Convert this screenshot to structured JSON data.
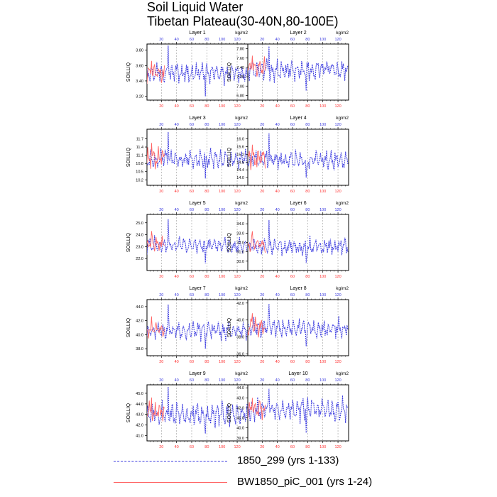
{
  "figure": {
    "title_line1": "Soil Liquid Water",
    "title_line2": "Tibetan Plateau(30-40N,80-100E)"
  },
  "legend": [
    {
      "label": "1850_299 (yrs 1-133)",
      "color": "#3a3adf",
      "style": "dashed"
    },
    {
      "label": "BW1850_piC_001 (yrs 1-24)",
      "color": "#ff6666",
      "style": "solid"
    }
  ],
  "chart_data": [
    {
      "type": "line",
      "title": "Layer 1",
      "units": "kg/m2",
      "ylabel": "SOILLIQ",
      "ylim": [
        3.15,
        3.88
      ],
      "yticks": [
        "3.20",
        "3.40",
        "3.60",
        "3.80"
      ],
      "yvals": [
        3.2,
        3.4,
        3.6,
        3.8
      ],
      "top_ticks": [
        "20",
        "40",
        "60",
        "80",
        "100",
        "120"
      ],
      "bottom_ticks": [
        "20",
        "40",
        "60",
        "80",
        "100",
        "120"
      ],
      "grid": "dashed vertical lines at top-axis ticks",
      "series": [
        {
          "name": "1850_299 (yrs 1-133)",
          "x_range": [
            1,
            133
          ],
          "color": "#3a3adf",
          "mean": 3.5,
          "amp": 0.09,
          "peak": 3.86,
          "min": 3.2
        },
        {
          "name": "BW1850_piC_001 (yrs 1-24)",
          "x_range": [
            1,
            24
          ],
          "color": "#ff6666",
          "mean": 3.5,
          "amp": 0.09,
          "peak": 3.66
        }
      ]
    },
    {
      "type": "line",
      "title": "Layer 2",
      "units": "kg/m2",
      "ylabel": "SOILLIQ",
      "ylim": [
        6.7,
        7.9
      ],
      "yticks": [
        "6.80",
        "7.00",
        "7.20",
        "7.40",
        "7.60",
        "7.80"
      ],
      "yvals": [
        6.8,
        7.0,
        7.2,
        7.4,
        7.6,
        7.8
      ],
      "top_ticks": [
        "20",
        "40",
        "60",
        "80",
        "100",
        "120"
      ],
      "bottom_ticks": [
        "20",
        "40",
        "60",
        "80",
        "100",
        "120"
      ],
      "grid": "dashed vertical lines at top-axis ticks",
      "series": [
        {
          "name": "1850_299 (yrs 1-133)",
          "x_range": [
            1,
            133
          ],
          "color": "#3a3adf",
          "mean": 7.35,
          "amp": 0.16,
          "peak": 7.85,
          "min": 6.9
        },
        {
          "name": "BW1850_piC_001 (yrs 1-24)",
          "x_range": [
            1,
            24
          ],
          "color": "#ff6666",
          "mean": 7.4,
          "amp": 0.15,
          "peak": 7.65
        }
      ]
    },
    {
      "type": "line",
      "title": "Layer 3",
      "units": "kg/m2",
      "ylabel": "SOILLIQ",
      "ylim": [
        10.0,
        12.05
      ],
      "yticks": [
        "10.2",
        "10.5",
        "10.8",
        "11.1",
        "11.4",
        "11.7"
      ],
      "yvals": [
        10.2,
        10.5,
        10.8,
        11.1,
        11.4,
        11.7
      ],
      "top_ticks": [
        "20",
        "40",
        "60",
        "80",
        "100",
        "120"
      ],
      "bottom_ticks": [
        "20",
        "40",
        "60",
        "80",
        "100",
        "120"
      ],
      "grid": "dashed vertical lines at top-axis ticks",
      "series": [
        {
          "name": "1850_299 (yrs 1-133)",
          "x_range": [
            1,
            133
          ],
          "color": "#3a3adf",
          "mean": 10.95,
          "amp": 0.25,
          "peak": 11.95,
          "min": 10.25
        },
        {
          "name": "BW1850_piC_001 (yrs 1-24)",
          "x_range": [
            1,
            24
          ],
          "color": "#ff6666",
          "mean": 11.0,
          "amp": 0.25,
          "peak": 11.55
        }
      ]
    },
    {
      "type": "line",
      "title": "Layer 4",
      "units": "kg/m2",
      "ylabel": "SOILLIQ",
      "ylim": [
        13.6,
        16.5
      ],
      "yticks": [
        "14.0",
        "14.4",
        "14.8",
        "15.2",
        "15.6",
        "16.0"
      ],
      "yvals": [
        14.0,
        14.4,
        14.8,
        15.2,
        15.6,
        16.0
      ],
      "top_ticks": [
        "20",
        "40",
        "60",
        "80",
        "100",
        "120"
      ],
      "bottom_ticks": [
        "20",
        "40",
        "60",
        "80",
        "100",
        "120"
      ],
      "grid": "dashed vertical lines at top-axis ticks",
      "series": [
        {
          "name": "1850_299 (yrs 1-133)",
          "x_range": [
            1,
            133
          ],
          "color": "#3a3adf",
          "mean": 14.9,
          "amp": 0.35,
          "peak": 16.3,
          "min": 14.0
        },
        {
          "name": "BW1850_piC_001 (yrs 1-24)",
          "x_range": [
            1,
            24
          ],
          "color": "#ff6666",
          "mean": 15.0,
          "amp": 0.35,
          "peak": 15.7
        }
      ]
    },
    {
      "type": "line",
      "title": "Layer 5",
      "units": "kg/m2",
      "ylabel": "SOILLIQ",
      "ylim": [
        21.0,
        25.7
      ],
      "yticks": [
        "22.0",
        "23.0",
        "24.0",
        "25.0"
      ],
      "yvals": [
        22.0,
        23.0,
        24.0,
        25.0
      ],
      "top_ticks": [
        "20",
        "40",
        "60",
        "80",
        "100",
        "120"
      ],
      "bottom_ticks": [
        "20",
        "40",
        "60",
        "80",
        "100",
        "120"
      ],
      "grid": "dashed vertical lines at top-axis ticks",
      "series": [
        {
          "name": "1850_299 (yrs 1-133)",
          "x_range": [
            1,
            133
          ],
          "color": "#3a3adf",
          "mean": 23.1,
          "amp": 0.5,
          "peak": 25.3,
          "min": 21.6
        },
        {
          "name": "BW1850_piC_001 (yrs 1-24)",
          "x_range": [
            1,
            24
          ],
          "color": "#ff6666",
          "mean": 23.2,
          "amp": 0.5,
          "peak": 24.3
        }
      ]
    },
    {
      "type": "line",
      "title": "Layer 6",
      "units": "kg/m2",
      "ylabel": "SOILLIQ",
      "ylim": [
        29.0,
        35.0
      ],
      "yticks": [
        "30.0",
        "31.0",
        "32.0",
        "33.0",
        "34.0"
      ],
      "yvals": [
        30.0,
        31.0,
        32.0,
        33.0,
        34.0
      ],
      "top_ticks": [
        "20",
        "40",
        "60",
        "80",
        "100",
        "120"
      ],
      "bottom_ticks": [
        "20",
        "40",
        "60",
        "80",
        "100",
        "120"
      ],
      "grid": "dashed vertical lines at top-axis ticks",
      "series": [
        {
          "name": "1850_299 (yrs 1-133)",
          "x_range": [
            1,
            133
          ],
          "color": "#3a3adf",
          "mean": 31.6,
          "amp": 0.65,
          "peak": 34.4,
          "min": 29.8
        },
        {
          "name": "BW1850_piC_001 (yrs 1-24)",
          "x_range": [
            1,
            24
          ],
          "color": "#ff6666",
          "mean": 31.8,
          "amp": 0.6,
          "peak": 33.2
        }
      ]
    },
    {
      "type": "line",
      "title": "Layer 7",
      "units": "kg/m2",
      "ylabel": "SOILLIQ",
      "ylim": [
        37.0,
        45.0
      ],
      "yticks": [
        "38.0",
        "40.0",
        "42.0",
        "44.0"
      ],
      "yvals": [
        38.0,
        40.0,
        42.0,
        44.0
      ],
      "top_ticks": [
        "20",
        "40",
        "60",
        "80",
        "100",
        "120"
      ],
      "bottom_ticks": [
        "20",
        "40",
        "60",
        "80",
        "100",
        "120"
      ],
      "grid": "dashed vertical lines at top-axis ticks",
      "series": [
        {
          "name": "1850_299 (yrs 1-133)",
          "x_range": [
            1,
            133
          ],
          "color": "#3a3adf",
          "mean": 40.6,
          "amp": 0.9,
          "peak": 44.3,
          "min": 38.0
        },
        {
          "name": "BW1850_piC_001 (yrs 1-24)",
          "x_range": [
            1,
            24
          ],
          "color": "#ff6666",
          "mean": 40.8,
          "amp": 0.9,
          "peak": 42.6
        }
      ]
    },
    {
      "type": "line",
      "title": "Layer 8",
      "units": "kg/m2",
      "ylabel": "SOILLIQ",
      "ylim": [
        35.8,
        42.4
      ],
      "yticks": [
        "36.0",
        "38.0",
        "40.0",
        "42.0"
      ],
      "yvals": [
        36.0,
        38.0,
        40.0,
        42.0
      ],
      "top_ticks": [
        "20",
        "40",
        "60",
        "80",
        "100",
        "120"
      ],
      "bottom_ticks": [
        "20",
        "40",
        "60",
        "80",
        "100",
        "120"
      ],
      "grid": "dashed vertical lines at top-axis ticks",
      "series": [
        {
          "name": "1850_299 (yrs 1-133)",
          "x_range": [
            1,
            133
          ],
          "color": "#3a3adf",
          "mean": 39.0,
          "amp": 0.8,
          "peak": 41.9,
          "min": 36.9
        },
        {
          "name": "BW1850_piC_001 (yrs 1-24)",
          "x_range": [
            1,
            24
          ],
          "color": "#ff6666",
          "mean": 39.3,
          "amp": 0.8,
          "peak": 40.8
        }
      ]
    },
    {
      "type": "line",
      "title": "Layer 9",
      "units": "kg/m2",
      "ylabel": "SOILLIQ",
      "ylim": [
        40.5,
        45.8
      ],
      "yticks": [
        "41.0",
        "42.0",
        "43.0",
        "44.0",
        "45.0"
      ],
      "yvals": [
        41.0,
        42.0,
        43.0,
        44.0,
        45.0
      ],
      "top_ticks": [
        "20",
        "40",
        "60",
        "80",
        "100",
        "120"
      ],
      "bottom_ticks": [
        "20",
        "40",
        "60",
        "80",
        "100",
        "120"
      ],
      "grid": "dashed vertical lines at top-axis ticks",
      "series": [
        {
          "name": "1850_299 (yrs 1-133)",
          "x_range": [
            1,
            133
          ],
          "color": "#3a3adf",
          "mean": 43.0,
          "amp": 0.8,
          "peak": 45.6,
          "min": 41.2
        },
        {
          "name": "BW1850_piC_001 (yrs 1-24)",
          "x_range": [
            1,
            24
          ],
          "color": "#ff6666",
          "mean": 43.2,
          "amp": 0.7,
          "peak": 44.6
        }
      ]
    },
    {
      "type": "line",
      "title": "Layer 10",
      "units": "kg/m2",
      "ylabel": "SOILLIQ",
      "ylim": [
        38.7,
        44.3
      ],
      "yticks": [
        "39.0",
        "40.0",
        "41.0",
        "42.0",
        "43.0",
        "44.0"
      ],
      "yvals": [
        39.0,
        40.0,
        41.0,
        42.0,
        43.0,
        44.0
      ],
      "top_ticks": [
        "20",
        "40",
        "60",
        "80",
        "100",
        "120"
      ],
      "bottom_ticks": [
        "20",
        "40",
        "60",
        "80",
        "100",
        "120"
      ],
      "grid": "dashed vertical lines at top-axis ticks",
      "series": [
        {
          "name": "1850_299 (yrs 1-133)",
          "x_range": [
            1,
            133
          ],
          "color": "#3a3adf",
          "mean": 41.8,
          "amp": 0.8,
          "peak": 43.9,
          "min": 39.5
        },
        {
          "name": "BW1850_piC_001 (yrs 1-24)",
          "x_range": [
            1,
            24
          ],
          "color": "#ff6666",
          "mean": 41.9,
          "amp": 0.7,
          "peak": 43.0
        }
      ]
    }
  ]
}
